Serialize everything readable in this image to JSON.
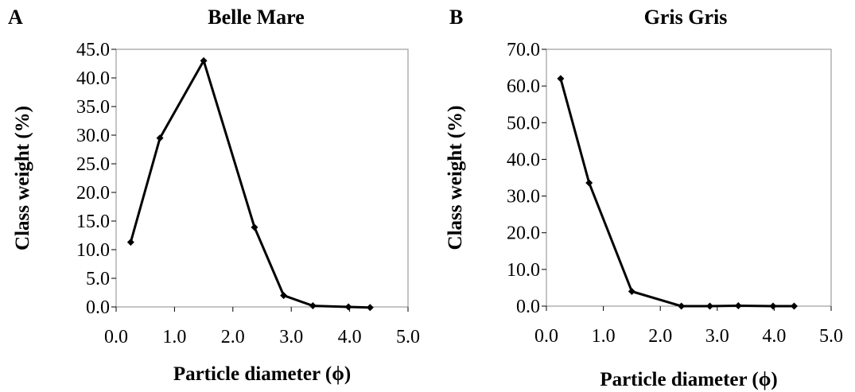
{
  "chart_data": [
    {
      "type": "line",
      "panel_label": "A",
      "title": "Belle Mare",
      "xlabel": "Particle diameter (ϕ)",
      "ylabel": "Class weight (%)",
      "xlim": [
        0,
        5
      ],
      "ylim": [
        0,
        45
      ],
      "x_ticks": [
        "0.0",
        "1.0",
        "2.0",
        "3.0",
        "4.0",
        "5.0"
      ],
      "y_ticks": [
        "0.0",
        "5.0",
        "10.0",
        "15.0",
        "20.0",
        "25.0",
        "30.0",
        "35.0",
        "40.0",
        "45.0"
      ],
      "grid": false,
      "marker": "diamond",
      "line_color": "#000000",
      "series": [
        {
          "x": [
            0.25,
            0.75,
            1.5,
            2.37,
            2.87,
            3.37,
            3.98,
            4.35
          ],
          "values": [
            11.3,
            29.5,
            43.0,
            13.9,
            2.0,
            0.2,
            0.0,
            -0.1
          ]
        }
      ]
    },
    {
      "type": "line",
      "panel_label": "B",
      "title": "Gris Gris",
      "xlabel": "Particle diameter (ϕ)",
      "ylabel": "Class weight (%)",
      "xlim": [
        0,
        5
      ],
      "ylim": [
        0,
        70
      ],
      "x_ticks": [
        "0.0",
        "1.0",
        "2.0",
        "3.0",
        "4.0",
        "5.0"
      ],
      "y_ticks": [
        "0.0",
        "10.0",
        "20.0",
        "30.0",
        "40.0",
        "50.0",
        "60.0",
        "70.0"
      ],
      "grid": false,
      "marker": "diamond",
      "line_color": "#000000",
      "series": [
        {
          "x": [
            0.25,
            0.75,
            1.5,
            2.37,
            2.87,
            3.37,
            3.98,
            4.35
          ],
          "values": [
            62.0,
            33.6,
            4.0,
            0.0,
            0.0,
            0.1,
            0.0,
            0.0
          ]
        }
      ]
    }
  ]
}
